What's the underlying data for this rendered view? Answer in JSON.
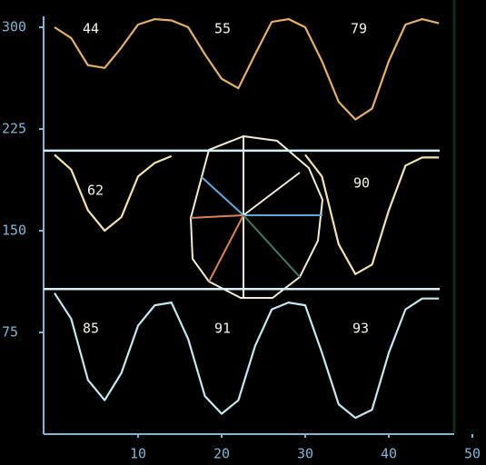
{
  "chart_data": {
    "type": "line",
    "x": [
      0,
      2,
      4,
      6,
      8,
      10,
      12,
      14,
      16,
      18,
      20,
      22,
      24,
      26,
      28,
      30,
      32,
      34,
      36,
      38,
      40,
      42,
      44,
      46
    ],
    "series": [
      {
        "color": "#e8b060",
        "labels": [
          "44",
          "55",
          "79"
        ],
        "values": [
          300,
          292,
          272,
          270,
          285,
          302,
          306,
          305,
          300,
          280,
          262,
          255,
          280,
          304,
          306,
          300,
          275,
          245,
          232,
          240,
          275,
          302,
          306,
          303
        ]
      },
      {
        "color": "#f2e4a8",
        "labels": [
          "62",
          "90"
        ],
        "values": [
          206,
          195,
          165,
          150,
          160,
          190,
          200,
          205,
          null,
          null,
          null,
          null,
          null,
          null,
          null,
          206,
          190,
          140,
          118,
          125,
          165,
          198,
          204,
          204
        ]
      },
      {
        "color": "#bfeaf2",
        "labels": [
          "85",
          "91",
          "93"
        ],
        "values": [
          104,
          85,
          40,
          25,
          45,
          80,
          95,
          97,
          70,
          28,
          15,
          25,
          65,
          92,
          97,
          95,
          60,
          22,
          12,
          18,
          60,
          92,
          100,
          100
        ]
      }
    ],
    "reference_lines": [
      209,
      107
    ],
    "xlim": [
      0,
      50
    ],
    "xticks": [
      10,
      20,
      30,
      40,
      50
    ],
    "ylim": [
      0,
      300
    ],
    "yticks": [
      300,
      225,
      150,
      75
    ],
    "grid": false
  }
}
